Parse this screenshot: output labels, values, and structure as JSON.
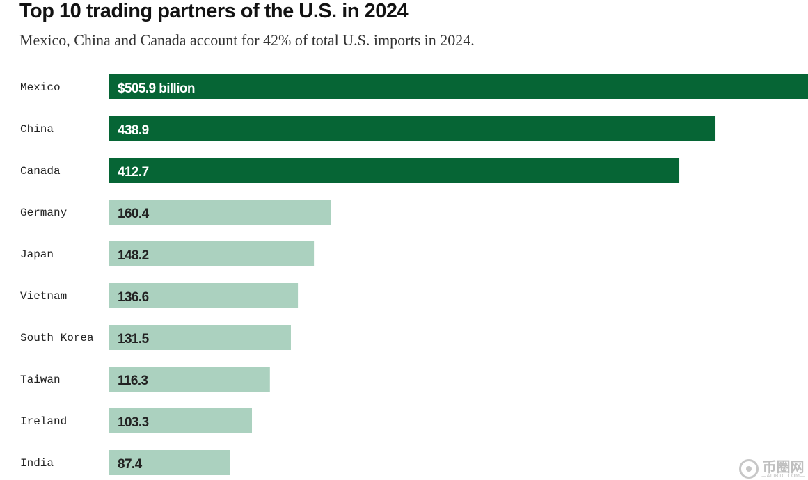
{
  "header": {
    "title": "Top 10 trading partners of the U.S. in 2024",
    "subtitle": "Mexico, China and Canada account for 42% of total U.S. imports in 2024."
  },
  "chart_data": {
    "type": "bar",
    "orientation": "horizontal",
    "title": "Top 10 trading partners of the U.S. in 2024",
    "subtitle": "Mexico, China and Canada account for 42% of total U.S. imports in 2024.",
    "xlabel": "",
    "ylabel": "",
    "unit": "billion USD",
    "xlim": [
      0,
      505.9
    ],
    "grid": false,
    "categories": [
      "Mexico",
      "China",
      "Canada",
      "Germany",
      "Japan",
      "Vietnam",
      "South Korea",
      "Taiwan",
      "Ireland",
      "India"
    ],
    "values": [
      505.9,
      438.9,
      412.7,
      160.4,
      148.2,
      136.6,
      131.5,
      116.3,
      103.3,
      87.4
    ],
    "value_labels": [
      "$505.9 billion",
      "438.9",
      "412.7",
      "160.4",
      "148.2",
      "136.6",
      "131.5",
      "116.3",
      "103.3",
      "87.4"
    ],
    "highlighted": [
      true,
      true,
      true,
      false,
      false,
      false,
      false,
      false,
      false,
      false
    ]
  },
  "colors": {
    "highlight_bar": "#066535",
    "regular_bar": "#abd1bf",
    "highlight_text": "#ffffff",
    "regular_text": "#222222"
  },
  "watermark": {
    "main": "币圈网",
    "sub": "—ALIBTC.COM—",
    "icon": "coin-logo-icon"
  }
}
